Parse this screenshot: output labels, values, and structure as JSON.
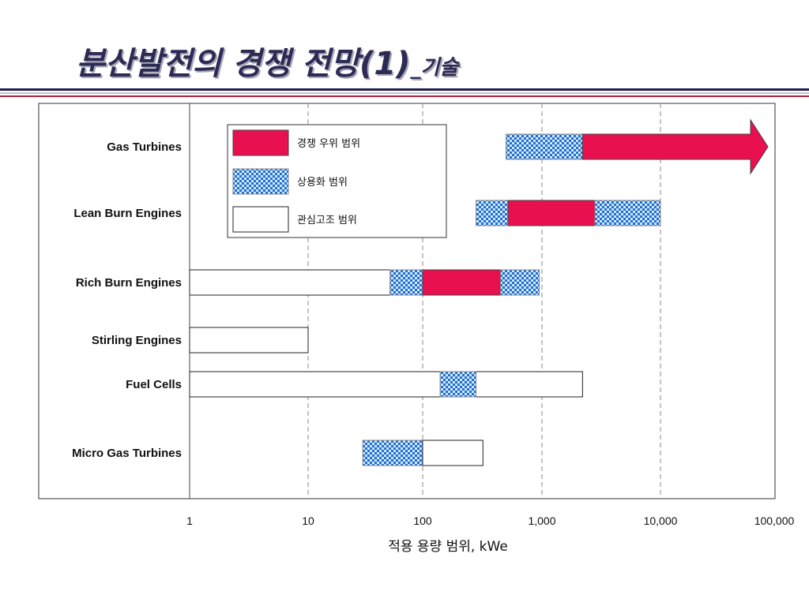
{
  "page": {
    "title": "분산발전의 경쟁 전망(1)",
    "subtitle": "_기술"
  },
  "chart_data": {
    "type": "bar",
    "orientation": "horizontal",
    "xscale": "log",
    "xlim": [
      1,
      100000
    ],
    "xticks": [
      "1",
      "10",
      "100",
      "1,000",
      "10,000",
      "100,000"
    ],
    "xlabel": "적용 용량 범위, kWe",
    "grid": "vertical dashed at 10, 100, 1,000, 10,000",
    "legend_position": "top-center",
    "series": [
      {
        "name": "경쟁 우위 범위",
        "color": "#e8104e",
        "pattern": "solid"
      },
      {
        "name": "상용화 범위",
        "color": "#1e6fd0",
        "pattern": "checkered"
      },
      {
        "name": "관심고조 범위",
        "color": "#ffffff",
        "pattern": "outline"
      }
    ],
    "categories": [
      "Gas Turbines",
      "Lean Burn Engines",
      "Rich Burn Engines",
      "Stirling Engines",
      "Fuel Cells",
      "Micro Gas Turbines"
    ],
    "ranges": [
      {
        "category": "Gas Turbines",
        "segments": [
          {
            "series": "상용화 범위",
            "start": 500,
            "end": 2200
          },
          {
            "series": "경쟁 우위 범위",
            "start": 2200,
            "end": 100000,
            "arrow": true
          }
        ]
      },
      {
        "category": "Lean Burn Engines",
        "segments": [
          {
            "series": "상용화 범위",
            "start": 280,
            "end": 520
          },
          {
            "series": "경쟁 우위 범위",
            "start": 520,
            "end": 2800
          },
          {
            "series": "상용화 범위",
            "start": 2800,
            "end": 10000
          }
        ]
      },
      {
        "category": "Rich Burn Engines",
        "segments": [
          {
            "series": "관심고조 범위",
            "start": 1,
            "end": 52
          },
          {
            "series": "상용화 범위",
            "start": 52,
            "end": 100
          },
          {
            "series": "경쟁 우위 범위",
            "start": 100,
            "end": 450
          },
          {
            "series": "상용화 범위",
            "start": 450,
            "end": 950
          }
        ]
      },
      {
        "category": "Stirling Engines",
        "segments": [
          {
            "series": "관심고조 범위",
            "start": 1,
            "end": 10
          }
        ]
      },
      {
        "category": "Fuel Cells",
        "segments": [
          {
            "series": "관심고조 범위",
            "start": 1,
            "end": 2200
          },
          {
            "series": "상용화 범위",
            "start": 140,
            "end": 280
          }
        ]
      },
      {
        "category": "Micro Gas Turbines",
        "segments": [
          {
            "series": "상용화 범위",
            "start": 30,
            "end": 100
          },
          {
            "series": "관심고조 범위",
            "start": 100,
            "end": 320
          }
        ]
      }
    ]
  }
}
